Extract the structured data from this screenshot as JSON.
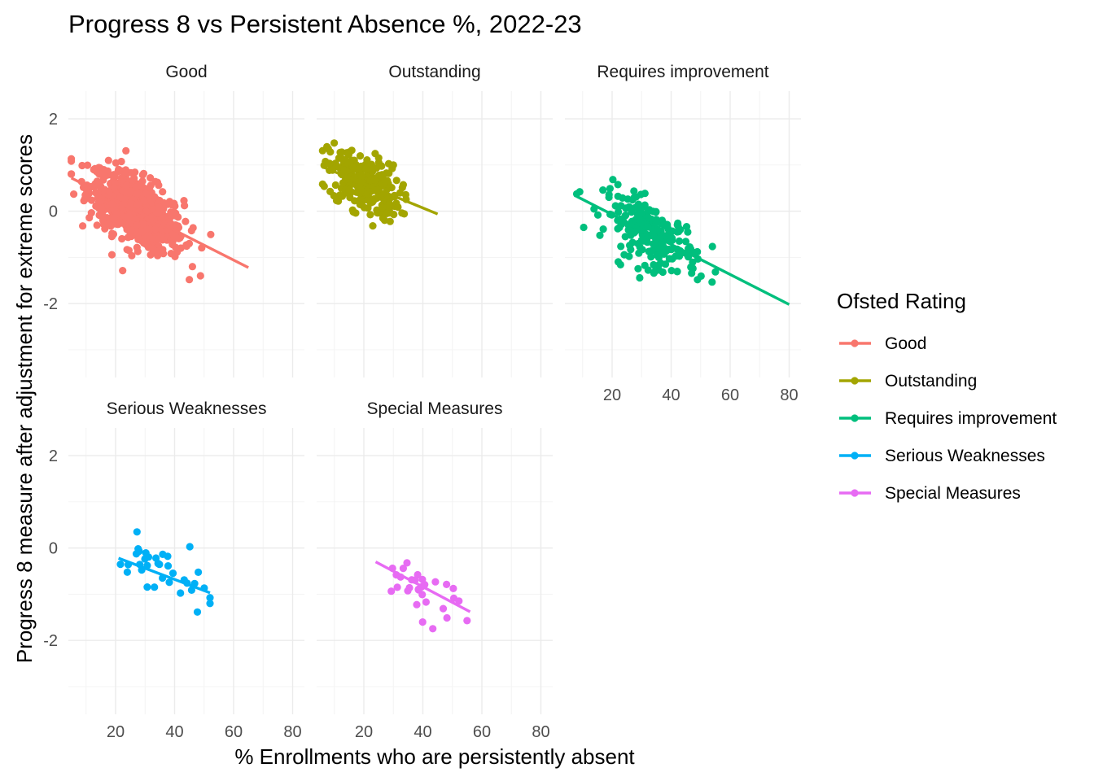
{
  "chart_data": {
    "type": "scatter",
    "title": "Progress 8 vs Persistent Absence %, 2022-23",
    "xlabel": "% Enrollments who are persistently absent",
    "ylabel": "Progress 8 measure after adjustment for extreme scores",
    "xlim": [
      4,
      84
    ],
    "ylim": [
      -3.6,
      2.6
    ],
    "x_ticks": [
      20,
      40,
      60,
      80
    ],
    "y_ticks": [
      -2,
      0,
      2
    ],
    "facet_by": "Ofsted Rating",
    "legend": {
      "title": "Ofsted Rating",
      "position": "right"
    },
    "grid": true,
    "series": [
      {
        "name": "Good",
        "color": "#F8766D",
        "fit": {
          "x0": 5,
          "y0": 0.72,
          "x1": 65,
          "y1": -1.22
        }
      },
      {
        "name": "Outstanding",
        "color": "#A3A500",
        "fit": {
          "x0": 6,
          "y0": 0.96,
          "x1": 45,
          "y1": -0.06
        }
      },
      {
        "name": "Requires improvement",
        "color": "#00BF7D",
        "fit": {
          "x0": 8,
          "y0": 0.32,
          "x1": 80,
          "y1": -2.02
        }
      },
      {
        "name": "Serious Weaknesses",
        "color": "#00B0F6",
        "fit": {
          "x0": 21,
          "y0": -0.22,
          "x1": 52,
          "y1": -0.97
        }
      },
      {
        "name": "Special Measures",
        "color": "#E76BF3",
        "fit": {
          "x0": 24,
          "y0": -0.3,
          "x1": 56,
          "y1": -1.38
        }
      }
    ]
  }
}
